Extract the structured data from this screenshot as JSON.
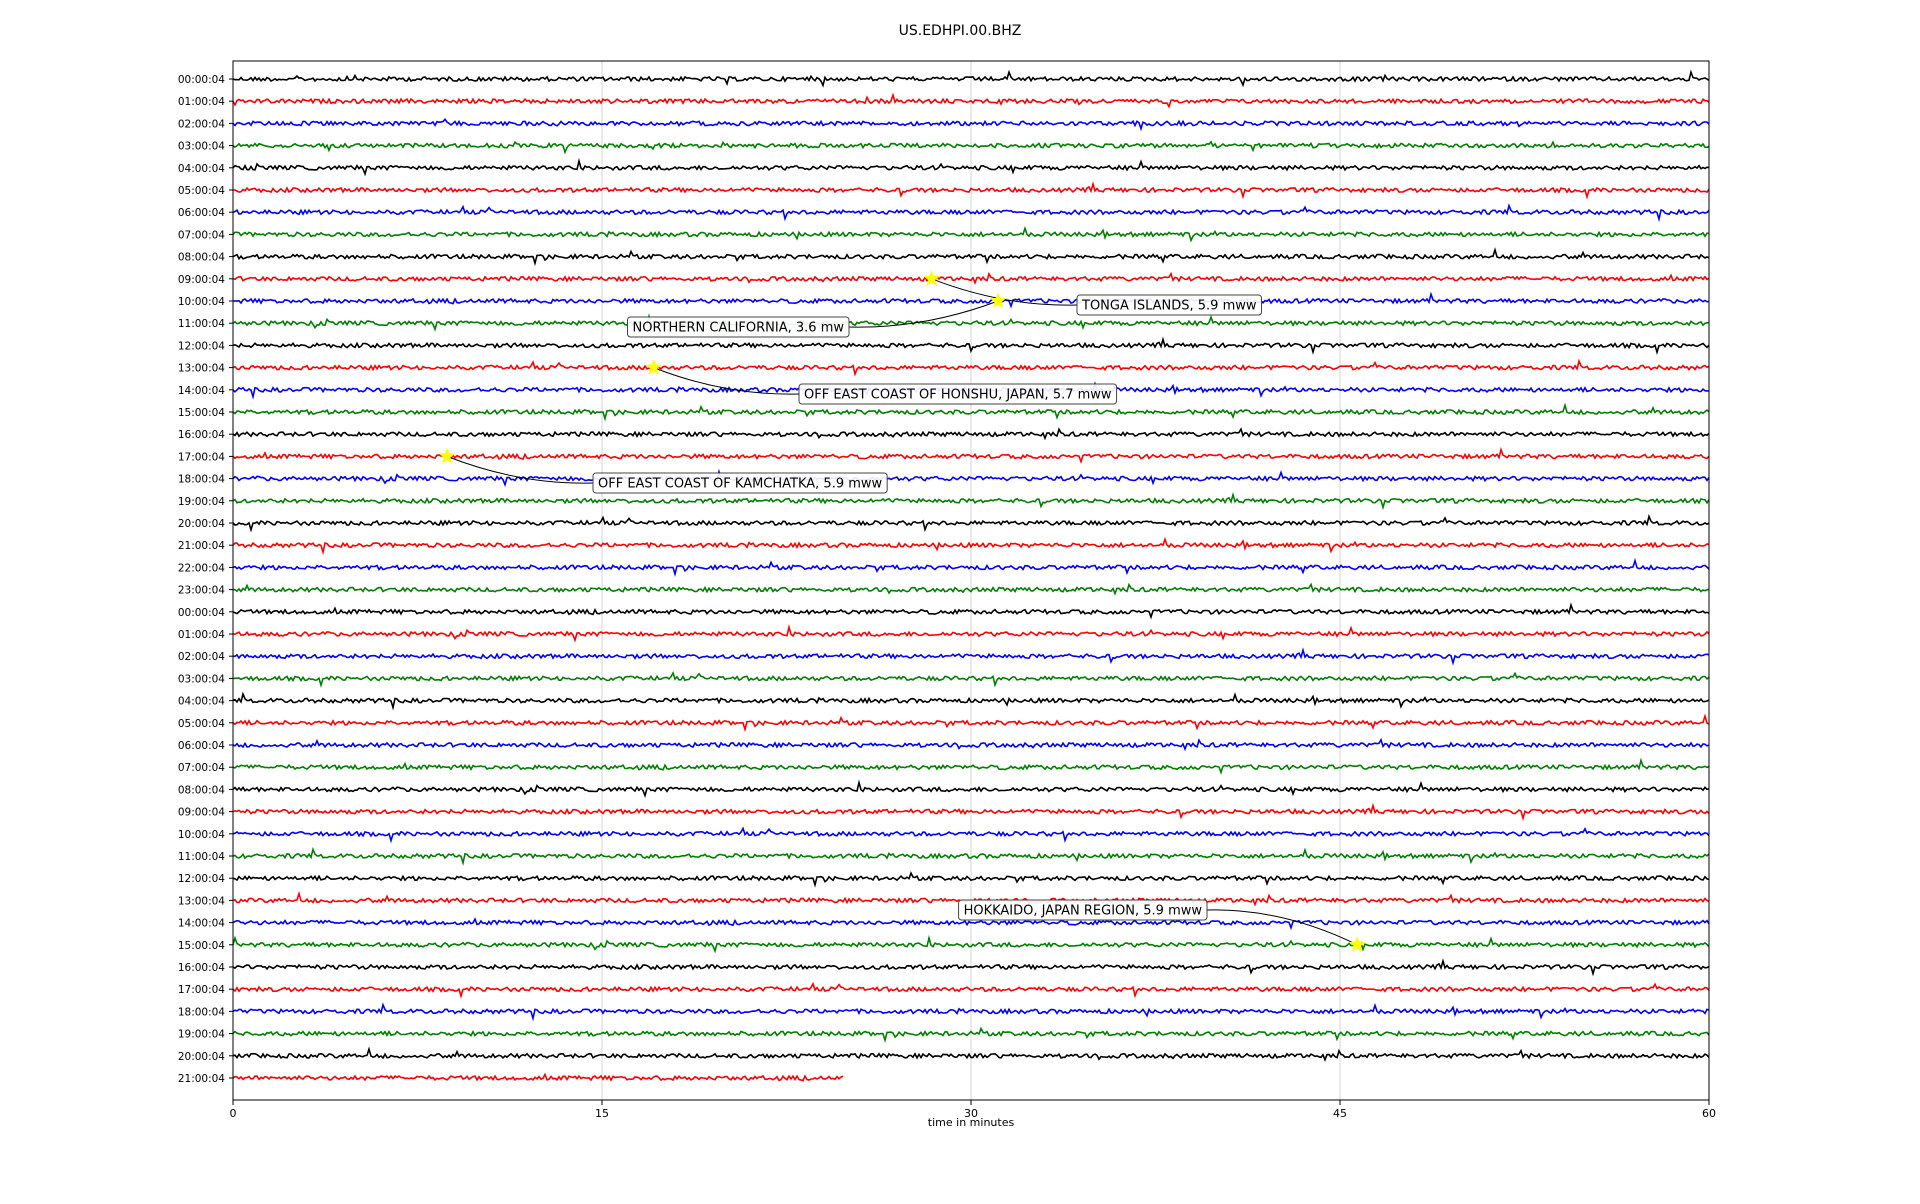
{
  "chart_data": {
    "type": "dayplot",
    "title": "US.EDHPI.00.BHZ",
    "xlabel": "time in minutes",
    "ylabel": "",
    "xlim": [
      0,
      60
    ],
    "xticks": [
      "0",
      "15",
      "30",
      "45",
      "60"
    ],
    "xtick_values": [
      0,
      15,
      30,
      45,
      60
    ],
    "grid": "vertical at x ticks",
    "trace_colors": [
      "#000000",
      "#ff0000",
      "#0000ff",
      "#008000"
    ],
    "marker_color": "#ffff00",
    "rows": [
      "00:00:04",
      "01:00:04",
      "02:00:04",
      "03:00:04",
      "04:00:04",
      "05:00:04",
      "06:00:04",
      "07:00:04",
      "08:00:04",
      "09:00:04",
      "10:00:04",
      "11:00:04",
      "12:00:04",
      "13:00:04",
      "14:00:04",
      "15:00:04",
      "16:00:04",
      "17:00:04",
      "18:00:04",
      "19:00:04",
      "20:00:04",
      "21:00:04",
      "22:00:04",
      "23:00:04",
      "00:00:04",
      "01:00:04",
      "02:00:04",
      "03:00:04",
      "04:00:04",
      "05:00:04",
      "06:00:04",
      "07:00:04",
      "08:00:04",
      "09:00:04",
      "10:00:04",
      "11:00:04",
      "12:00:04",
      "13:00:04",
      "14:00:04",
      "15:00:04",
      "16:00:04",
      "17:00:04",
      "18:00:04",
      "19:00:04",
      "20:00:04",
      "21:00:04"
    ],
    "last_row_end_minute": 24.8,
    "events": [
      {
        "label": "TONGA ISLANDS, 5.9 mww",
        "row": 9,
        "minute": 28.4
      },
      {
        "label": "NORTHERN CALIFORNIA, 3.6 mw",
        "row": 10,
        "minute": 31.1
      },
      {
        "label": "OFF EAST COAST OF HONSHU, JAPAN, 5.7 mww",
        "row": 13,
        "minute": 17.1
      },
      {
        "label": "OFF EAST COAST OF KAMCHATKA, 5.9 mww",
        "row": 17,
        "minute": 8.7
      },
      {
        "label": "HOKKAIDO, JAPAN REGION, 5.9 mww",
        "row": 39,
        "minute": 45.7
      }
    ]
  }
}
